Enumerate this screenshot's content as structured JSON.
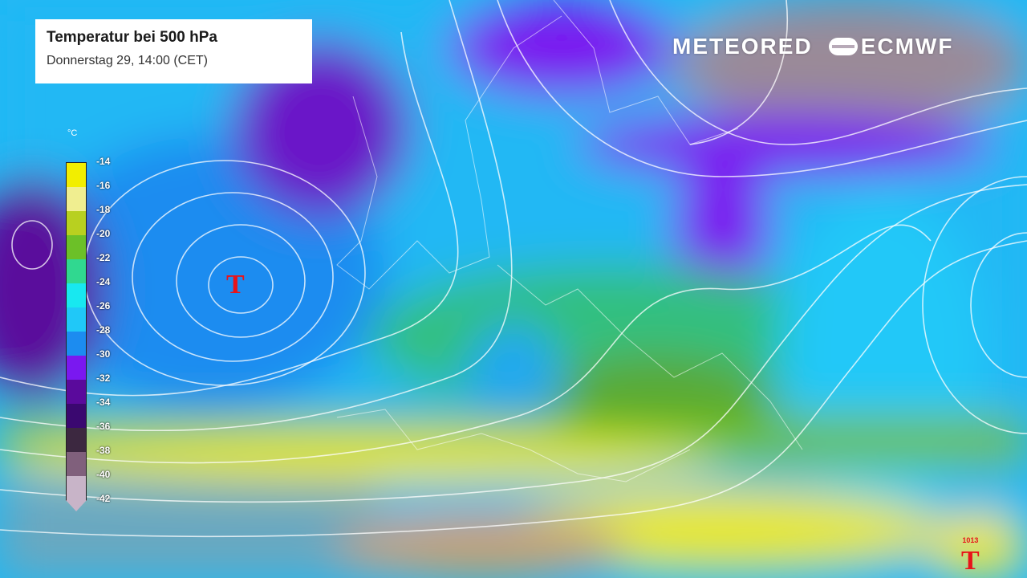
{
  "header": {
    "title": "Temperatur bei 500 hPa",
    "subtitle": "Donnerstag 29, 14:00 (CET)"
  },
  "logos": {
    "meteored": "METEORED",
    "ecmwf": "ECMWF"
  },
  "legend": {
    "unit": "°C",
    "entries": [
      {
        "label": "-14",
        "color": "#f2ee00"
      },
      {
        "label": "-16",
        "color": "#f0ee90"
      },
      {
        "label": "-18",
        "color": "#b8d020"
      },
      {
        "label": "-20",
        "color": "#6cc028"
      },
      {
        "label": "-22",
        "color": "#30d890"
      },
      {
        "label": "-24",
        "color": "#18e8f0"
      },
      {
        "label": "-26",
        "color": "#20c8f8"
      },
      {
        "label": "-28",
        "color": "#1c8cf0"
      },
      {
        "label": "-30",
        "color": "#7a18f0"
      },
      {
        "label": "-32",
        "color": "#5a0a9c"
      },
      {
        "label": "-34",
        "color": "#3a0870"
      },
      {
        "label": "-36",
        "color": "#3c2840"
      },
      {
        "label": "-38",
        "color": "#80607c"
      },
      {
        "label": "-40",
        "color": "#c8b4c8"
      },
      {
        "label": "-42",
        "color": "#c8b4c8"
      }
    ]
  },
  "pressure_centers": [
    {
      "type": "low",
      "symbol": "T",
      "value": ""
    },
    {
      "type": "low",
      "symbol": "T",
      "value": "1013"
    }
  ]
}
